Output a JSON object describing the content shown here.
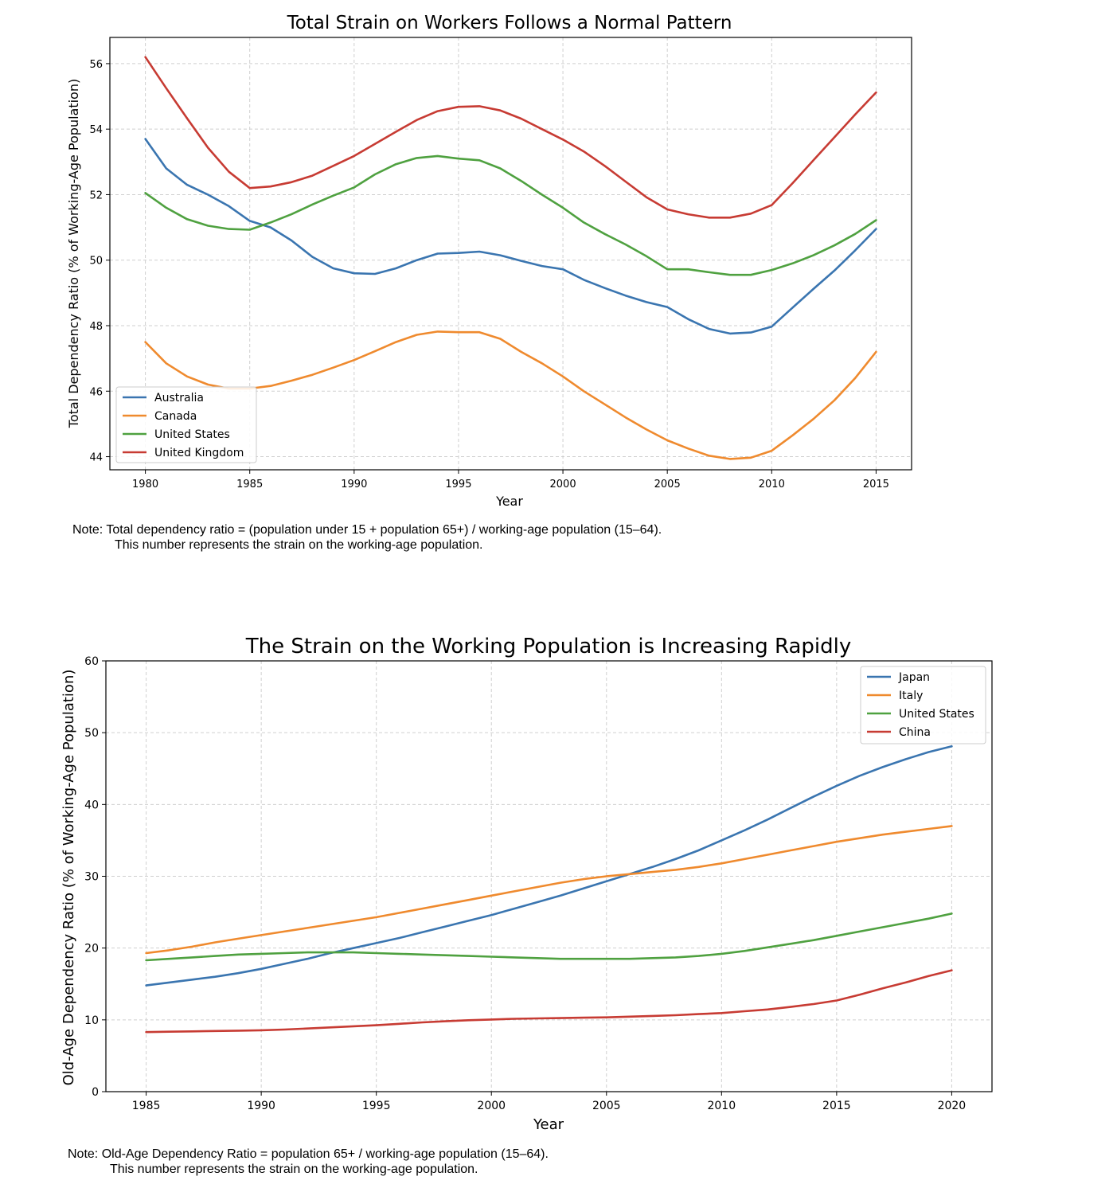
{
  "charts": [
    {
      "title": "Total Strain on Workers Follows a Normal Pattern",
      "note_line1": "Note: Total dependency ratio = (population under 15 + population 65+) / working-age population (15–64).",
      "note_line2": "This number represents the strain on the working-age population."
    },
    {
      "title": "The Strain on the Working Population is Increasing Rapidly",
      "note_line1": "Note: Old-Age Dependency Ratio = population 65+ / working-age population (15–64).",
      "note_line2": "This number represents the strain on the working-age population."
    }
  ],
  "chart_data": [
    {
      "type": "line",
      "title": "Total Strain on Workers Follows a Normal Pattern",
      "xlabel": "Year",
      "ylabel": "Total Dependency Ratio (% of Working-Age Population)",
      "xlim": [
        1978.3,
        1016.7
      ],
      "ylim": [
        43.6,
        56.8
      ],
      "xticks": [
        "1980",
        "1985",
        "1990",
        "1995",
        "2000",
        "2005",
        "2010",
        "2015"
      ],
      "yticks": [
        "44",
        "46",
        "48",
        "50",
        "52",
        "54",
        "56"
      ],
      "grid": true,
      "legend_position": "lower-left",
      "x": [
        1980,
        1981,
        1982,
        1983,
        1984,
        1985,
        1986,
        1987,
        1988,
        1989,
        1990,
        1991,
        1992,
        1993,
        1994,
        1995,
        1996,
        1997,
        1998,
        1999,
        2000,
        2001,
        2002,
        2003,
        2004,
        2005,
        2006,
        2007,
        2008,
        2009,
        2010,
        2011,
        2012,
        2013,
        2014,
        2015
      ],
      "series": [
        {
          "name": "Australia",
          "color": "#3a75b0",
          "values": [
            53.7,
            52.8,
            52.3,
            52.0,
            51.65,
            51.2,
            51.0,
            50.6,
            50.1,
            49.75,
            49.6,
            49.58,
            49.75,
            50.0,
            50.2,
            50.22,
            50.26,
            50.15,
            49.98,
            49.82,
            49.72,
            49.4,
            49.15,
            48.92,
            48.72,
            48.57,
            48.2,
            47.9,
            47.76,
            47.79,
            47.97,
            48.55,
            49.12,
            49.68,
            50.3,
            50.95
          ]
        },
        {
          "name": "Canada",
          "color": "#ef8a2e",
          "values": [
            47.5,
            46.85,
            46.45,
            46.2,
            46.08,
            46.08,
            46.16,
            46.32,
            46.5,
            46.72,
            46.95,
            47.22,
            47.5,
            47.72,
            47.82,
            47.8,
            47.8,
            47.6,
            47.2,
            46.85,
            46.45,
            46.0,
            45.6,
            45.2,
            44.83,
            44.5,
            44.25,
            44.03,
            43.93,
            43.97,
            44.18,
            44.65,
            45.15,
            45.72,
            46.4,
            47.2
          ]
        },
        {
          "name": "United States",
          "color": "#4fa140",
          "values": [
            52.05,
            51.6,
            51.25,
            51.05,
            50.95,
            50.93,
            51.15,
            51.4,
            51.7,
            51.97,
            52.22,
            52.62,
            52.93,
            53.12,
            53.18,
            53.1,
            53.05,
            52.8,
            52.42,
            52.0,
            51.6,
            51.15,
            50.8,
            50.48,
            50.12,
            49.72,
            49.72,
            49.63,
            49.55,
            49.55,
            49.7,
            49.9,
            50.15,
            50.45,
            50.8,
            51.22
          ]
        },
        {
          "name": "United Kingdom",
          "color": "#c73b33",
          "values": [
            56.2,
            55.25,
            54.33,
            53.43,
            52.7,
            52.2,
            52.25,
            52.38,
            52.58,
            52.88,
            53.18,
            53.55,
            53.92,
            54.28,
            54.55,
            54.68,
            54.7,
            54.57,
            54.32,
            54.0,
            53.68,
            53.32,
            52.88,
            52.4,
            51.92,
            51.55,
            51.4,
            51.3,
            51.3,
            51.42,
            51.68,
            52.35,
            53.05,
            53.75,
            54.45,
            55.12
          ]
        }
      ]
    },
    {
      "type": "line",
      "title": "The Strain on the Working Population is Increasing Rapidly",
      "xlabel": "Year",
      "ylabel": "Old-Age Dependency Ratio (% of Working-Age Population)",
      "xlim": [
        1983.25,
        2021.75
      ],
      "ylim": [
        0,
        60
      ],
      "xticks": [
        "1985",
        "1990",
        "1995",
        "2000",
        "2005",
        "2010",
        "2015",
        "2020"
      ],
      "yticks": [
        "0",
        "10",
        "20",
        "30",
        "40",
        "50",
        "60"
      ],
      "grid": true,
      "legend_position": "top-right",
      "x": [
        1985,
        1986,
        1987,
        1988,
        1989,
        1990,
        1991,
        1992,
        1993,
        1994,
        1995,
        1996,
        1997,
        1998,
        1999,
        2000,
        2001,
        2002,
        2003,
        2004,
        2005,
        2006,
        2007,
        2008,
        2009,
        2010,
        2011,
        2012,
        2013,
        2014,
        2015,
        2016,
        2017,
        2018,
        2019,
        2020
      ],
      "series": [
        {
          "name": "Japan",
          "color": "#3a75b0",
          "values": [
            14.8,
            15.2,
            15.6,
            16.0,
            16.5,
            17.1,
            17.8,
            18.5,
            19.3,
            20.0,
            20.7,
            21.4,
            22.2,
            23.0,
            23.8,
            24.6,
            25.5,
            26.4,
            27.3,
            28.3,
            29.3,
            30.3,
            31.3,
            32.4,
            33.6,
            35.0,
            36.4,
            37.9,
            39.5,
            41.1,
            42.6,
            44.0,
            45.2,
            46.3,
            47.3,
            48.1
          ]
        },
        {
          "name": "Italy",
          "color": "#ef8a2e",
          "values": [
            19.3,
            19.7,
            20.2,
            20.8,
            21.3,
            21.8,
            22.3,
            22.8,
            23.3,
            23.8,
            24.3,
            24.9,
            25.5,
            26.1,
            26.7,
            27.3,
            27.9,
            28.5,
            29.1,
            29.6,
            30.0,
            30.3,
            30.6,
            30.9,
            31.3,
            31.8,
            32.4,
            33.0,
            33.6,
            34.2,
            34.8,
            35.3,
            35.8,
            36.2,
            36.6,
            37.0
          ]
        },
        {
          "name": "United States",
          "color": "#4fa140",
          "values": [
            18.3,
            18.5,
            18.7,
            18.9,
            19.1,
            19.2,
            19.3,
            19.4,
            19.4,
            19.4,
            19.3,
            19.2,
            19.1,
            19.0,
            18.9,
            18.8,
            18.7,
            18.6,
            18.5,
            18.5,
            18.5,
            18.5,
            18.6,
            18.7,
            18.9,
            19.2,
            19.6,
            20.1,
            20.6,
            21.1,
            21.7,
            22.3,
            22.9,
            23.5,
            24.1,
            24.8
          ]
        },
        {
          "name": "China",
          "color": "#c73b33",
          "values": [
            8.3,
            8.35,
            8.4,
            8.45,
            8.5,
            8.55,
            8.65,
            8.8,
            8.95,
            9.1,
            9.25,
            9.45,
            9.65,
            9.8,
            9.95,
            10.05,
            10.15,
            10.2,
            10.25,
            10.3,
            10.35,
            10.45,
            10.55,
            10.65,
            10.8,
            10.95,
            11.2,
            11.45,
            11.8,
            12.2,
            12.7,
            13.5,
            14.4,
            15.2,
            16.1,
            16.9
          ]
        }
      ]
    }
  ]
}
